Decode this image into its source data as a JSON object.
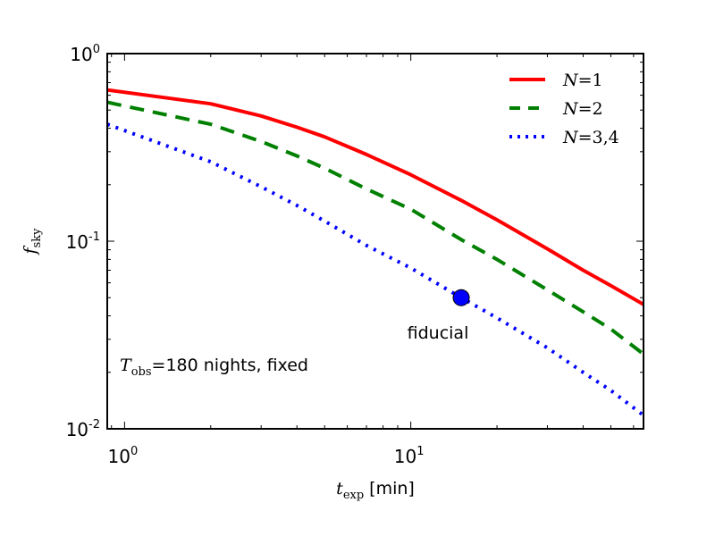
{
  "chart_data": {
    "type": "line",
    "xscale": "log",
    "yscale": "log",
    "xlim": [
      0.87,
      65
    ],
    "ylim": [
      0.01,
      1.0
    ],
    "xlabel": {
      "base": "t",
      "sub": "exp",
      "unit": "[min]"
    },
    "ylabel": {
      "base": "f",
      "sub": "sky"
    },
    "x_ticks": [
      {
        "value": 1,
        "base": "10",
        "exp": "0"
      },
      {
        "value": 10,
        "base": "10",
        "exp": "1"
      }
    ],
    "y_ticks": [
      {
        "value": 1,
        "base": "10",
        "exp": "0"
      },
      {
        "value": 0.1,
        "base": "10",
        "exp": "-1"
      },
      {
        "value": 0.01,
        "base": "10",
        "exp": "-2"
      }
    ],
    "series": [
      {
        "name": "N=1",
        "legend_var": "N",
        "legend_eq": "=",
        "legend_val": "1",
        "color": "#ff0000",
        "style": "solid",
        "x": [
          0.87,
          2,
          3,
          4,
          5,
          7,
          10,
          15,
          20,
          30,
          40,
          50,
          65
        ],
        "y": [
          0.64,
          0.54,
          0.465,
          0.405,
          0.36,
          0.29,
          0.226,
          0.165,
          0.13,
          0.091,
          0.07,
          0.058,
          0.046
        ]
      },
      {
        "name": "N=2",
        "legend_var": "N",
        "legend_eq": "=",
        "legend_val": "2",
        "color": "#008000",
        "style": "dashed",
        "x": [
          0.87,
          2,
          3,
          4,
          5,
          7,
          10,
          15,
          20,
          30,
          40,
          50,
          65
        ],
        "y": [
          0.55,
          0.42,
          0.34,
          0.285,
          0.245,
          0.19,
          0.148,
          0.102,
          0.08,
          0.055,
          0.042,
          0.034,
          0.025
        ]
      },
      {
        "name": "N=3,4",
        "legend_var": "N",
        "legend_eq": "=",
        "legend_val": "3,4",
        "color": "#0000ff",
        "style": "dotted",
        "x": [
          0.87,
          2,
          3,
          4,
          5,
          7,
          10,
          15,
          20,
          30,
          40,
          50,
          65
        ],
        "y": [
          0.42,
          0.265,
          0.195,
          0.155,
          0.128,
          0.095,
          0.072,
          0.05,
          0.039,
          0.027,
          0.02,
          0.016,
          0.0118
        ]
      }
    ],
    "marker": {
      "x": 15,
      "y": 0.05,
      "label": "fiducial",
      "color": "#0000ff"
    },
    "annotation": {
      "var": "T",
      "sub": "obs",
      "eq": "=",
      "num": "180",
      "text": " nights, fixed"
    },
    "legend_position": "top-right"
  }
}
